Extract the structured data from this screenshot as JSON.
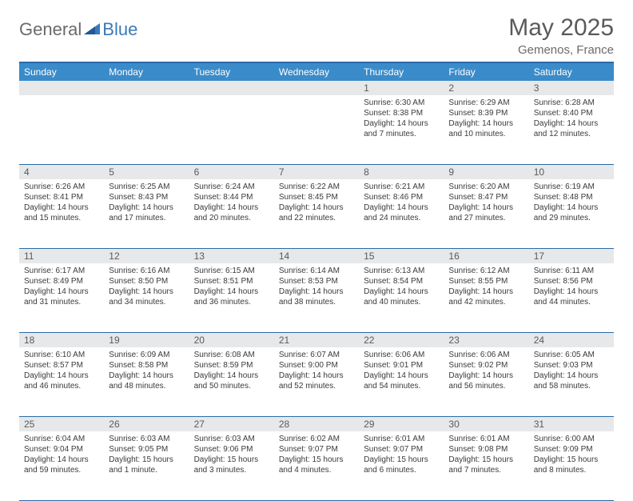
{
  "logo": {
    "part1": "General",
    "part2": "Blue"
  },
  "title": "May 2025",
  "location": "Gemenos, France",
  "colors": {
    "header_bar": "#3a8bc9",
    "border": "#2b6aa8",
    "daynum_bg": "#e7e8ea",
    "text": "#3a3a3a",
    "muted": "#6a6a6a",
    "background": "#ffffff"
  },
  "day_headers": [
    "Sunday",
    "Monday",
    "Tuesday",
    "Wednesday",
    "Thursday",
    "Friday",
    "Saturday"
  ],
  "weeks": [
    {
      "nums": [
        "",
        "",
        "",
        "",
        "1",
        "2",
        "3"
      ],
      "cells": [
        {},
        {},
        {},
        {},
        {
          "sunrise": "Sunrise: 6:30 AM",
          "sunset": "Sunset: 8:38 PM",
          "day1": "Daylight: 14 hours",
          "day2": "and 7 minutes."
        },
        {
          "sunrise": "Sunrise: 6:29 AM",
          "sunset": "Sunset: 8:39 PM",
          "day1": "Daylight: 14 hours",
          "day2": "and 10 minutes."
        },
        {
          "sunrise": "Sunrise: 6:28 AM",
          "sunset": "Sunset: 8:40 PM",
          "day1": "Daylight: 14 hours",
          "day2": "and 12 minutes."
        }
      ]
    },
    {
      "nums": [
        "4",
        "5",
        "6",
        "7",
        "8",
        "9",
        "10"
      ],
      "cells": [
        {
          "sunrise": "Sunrise: 6:26 AM",
          "sunset": "Sunset: 8:41 PM",
          "day1": "Daylight: 14 hours",
          "day2": "and 15 minutes."
        },
        {
          "sunrise": "Sunrise: 6:25 AM",
          "sunset": "Sunset: 8:43 PM",
          "day1": "Daylight: 14 hours",
          "day2": "and 17 minutes."
        },
        {
          "sunrise": "Sunrise: 6:24 AM",
          "sunset": "Sunset: 8:44 PM",
          "day1": "Daylight: 14 hours",
          "day2": "and 20 minutes."
        },
        {
          "sunrise": "Sunrise: 6:22 AM",
          "sunset": "Sunset: 8:45 PM",
          "day1": "Daylight: 14 hours",
          "day2": "and 22 minutes."
        },
        {
          "sunrise": "Sunrise: 6:21 AM",
          "sunset": "Sunset: 8:46 PM",
          "day1": "Daylight: 14 hours",
          "day2": "and 24 minutes."
        },
        {
          "sunrise": "Sunrise: 6:20 AM",
          "sunset": "Sunset: 8:47 PM",
          "day1": "Daylight: 14 hours",
          "day2": "and 27 minutes."
        },
        {
          "sunrise": "Sunrise: 6:19 AM",
          "sunset": "Sunset: 8:48 PM",
          "day1": "Daylight: 14 hours",
          "day2": "and 29 minutes."
        }
      ]
    },
    {
      "nums": [
        "11",
        "12",
        "13",
        "14",
        "15",
        "16",
        "17"
      ],
      "cells": [
        {
          "sunrise": "Sunrise: 6:17 AM",
          "sunset": "Sunset: 8:49 PM",
          "day1": "Daylight: 14 hours",
          "day2": "and 31 minutes."
        },
        {
          "sunrise": "Sunrise: 6:16 AM",
          "sunset": "Sunset: 8:50 PM",
          "day1": "Daylight: 14 hours",
          "day2": "and 34 minutes."
        },
        {
          "sunrise": "Sunrise: 6:15 AM",
          "sunset": "Sunset: 8:51 PM",
          "day1": "Daylight: 14 hours",
          "day2": "and 36 minutes."
        },
        {
          "sunrise": "Sunrise: 6:14 AM",
          "sunset": "Sunset: 8:53 PM",
          "day1": "Daylight: 14 hours",
          "day2": "and 38 minutes."
        },
        {
          "sunrise": "Sunrise: 6:13 AM",
          "sunset": "Sunset: 8:54 PM",
          "day1": "Daylight: 14 hours",
          "day2": "and 40 minutes."
        },
        {
          "sunrise": "Sunrise: 6:12 AM",
          "sunset": "Sunset: 8:55 PM",
          "day1": "Daylight: 14 hours",
          "day2": "and 42 minutes."
        },
        {
          "sunrise": "Sunrise: 6:11 AM",
          "sunset": "Sunset: 8:56 PM",
          "day1": "Daylight: 14 hours",
          "day2": "and 44 minutes."
        }
      ]
    },
    {
      "nums": [
        "18",
        "19",
        "20",
        "21",
        "22",
        "23",
        "24"
      ],
      "cells": [
        {
          "sunrise": "Sunrise: 6:10 AM",
          "sunset": "Sunset: 8:57 PM",
          "day1": "Daylight: 14 hours",
          "day2": "and 46 minutes."
        },
        {
          "sunrise": "Sunrise: 6:09 AM",
          "sunset": "Sunset: 8:58 PM",
          "day1": "Daylight: 14 hours",
          "day2": "and 48 minutes."
        },
        {
          "sunrise": "Sunrise: 6:08 AM",
          "sunset": "Sunset: 8:59 PM",
          "day1": "Daylight: 14 hours",
          "day2": "and 50 minutes."
        },
        {
          "sunrise": "Sunrise: 6:07 AM",
          "sunset": "Sunset: 9:00 PM",
          "day1": "Daylight: 14 hours",
          "day2": "and 52 minutes."
        },
        {
          "sunrise": "Sunrise: 6:06 AM",
          "sunset": "Sunset: 9:01 PM",
          "day1": "Daylight: 14 hours",
          "day2": "and 54 minutes."
        },
        {
          "sunrise": "Sunrise: 6:06 AM",
          "sunset": "Sunset: 9:02 PM",
          "day1": "Daylight: 14 hours",
          "day2": "and 56 minutes."
        },
        {
          "sunrise": "Sunrise: 6:05 AM",
          "sunset": "Sunset: 9:03 PM",
          "day1": "Daylight: 14 hours",
          "day2": "and 58 minutes."
        }
      ]
    },
    {
      "nums": [
        "25",
        "26",
        "27",
        "28",
        "29",
        "30",
        "31"
      ],
      "cells": [
        {
          "sunrise": "Sunrise: 6:04 AM",
          "sunset": "Sunset: 9:04 PM",
          "day1": "Daylight: 14 hours",
          "day2": "and 59 minutes."
        },
        {
          "sunrise": "Sunrise: 6:03 AM",
          "sunset": "Sunset: 9:05 PM",
          "day1": "Daylight: 15 hours",
          "day2": "and 1 minute."
        },
        {
          "sunrise": "Sunrise: 6:03 AM",
          "sunset": "Sunset: 9:06 PM",
          "day1": "Daylight: 15 hours",
          "day2": "and 3 minutes."
        },
        {
          "sunrise": "Sunrise: 6:02 AM",
          "sunset": "Sunset: 9:07 PM",
          "day1": "Daylight: 15 hours",
          "day2": "and 4 minutes."
        },
        {
          "sunrise": "Sunrise: 6:01 AM",
          "sunset": "Sunset: 9:07 PM",
          "day1": "Daylight: 15 hours",
          "day2": "and 6 minutes."
        },
        {
          "sunrise": "Sunrise: 6:01 AM",
          "sunset": "Sunset: 9:08 PM",
          "day1": "Daylight: 15 hours",
          "day2": "and 7 minutes."
        },
        {
          "sunrise": "Sunrise: 6:00 AM",
          "sunset": "Sunset: 9:09 PM",
          "day1": "Daylight: 15 hours",
          "day2": "and 8 minutes."
        }
      ]
    }
  ]
}
